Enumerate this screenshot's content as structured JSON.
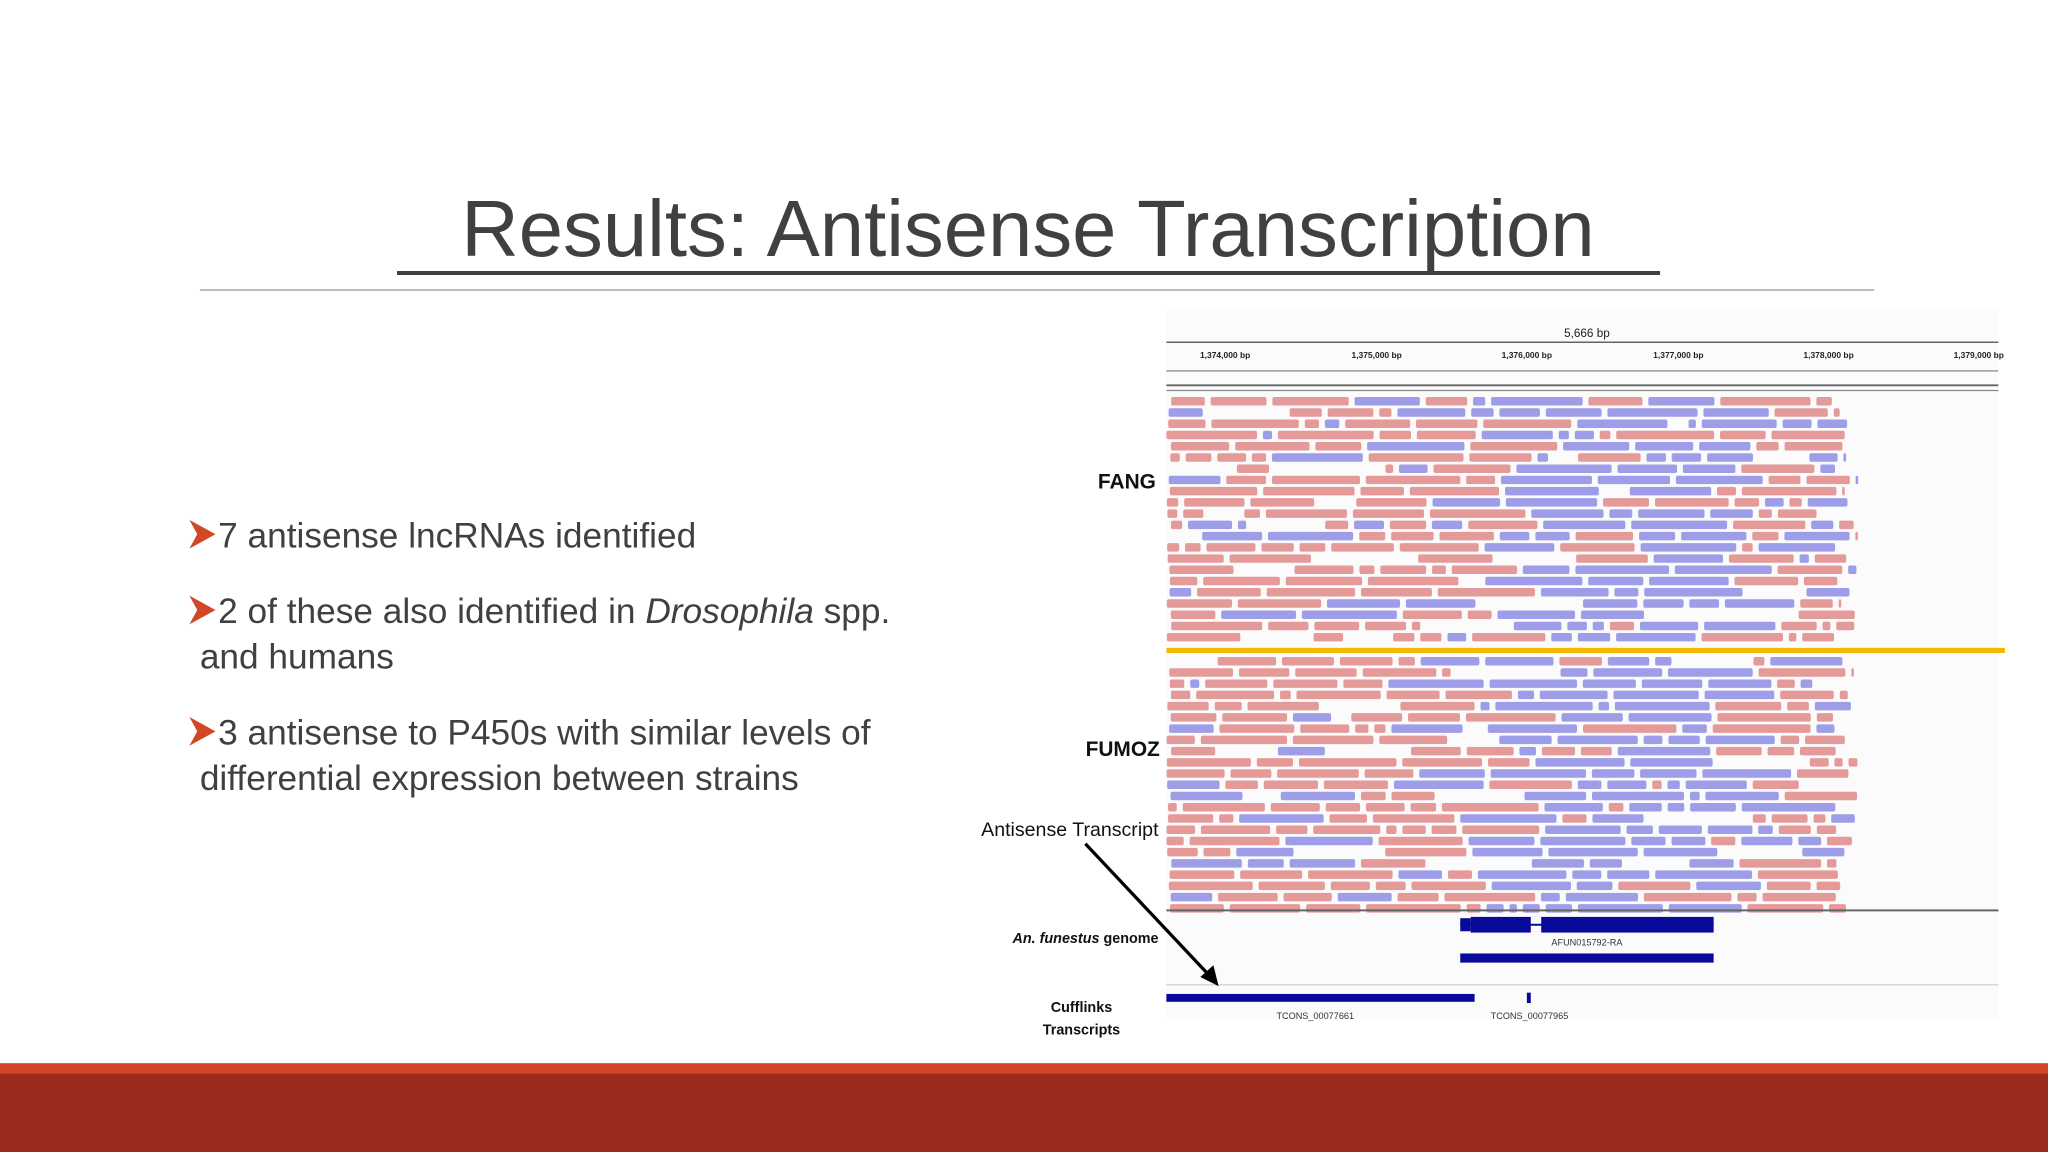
{
  "title": "Results: Antisense Transcription",
  "bullets": [
    {
      "lines": [
        [
          "7 antisense lncRNAs identified"
        ]
      ]
    },
    {
      "lines": [
        [
          "2 of these also identified in ",
          "Drosophila",
          " spp."
        ],
        [
          "and humans"
        ]
      ]
    },
    {
      "lines": [
        [
          "3 antisense to P450s with similar levels of"
        ],
        [
          "differential expression between strains"
        ]
      ]
    }
  ],
  "figure": {
    "ruler_span": "5,666 bp",
    "ruler_ticks": [
      "1,374,000 bp",
      "1,375,000 bp",
      "1,376,000 bp",
      "1,377,000 bp",
      "1,378,000 bp",
      "1,379,000 bp"
    ],
    "tracks": [
      "FANG",
      "FUMOZ"
    ],
    "callout": "Antisense Transcript",
    "genome_track": {
      "label_parts": [
        "An. funestus",
        " genome"
      ],
      "gene": "AFUN015792-RA"
    },
    "cufflinks": {
      "label_lines": [
        "Cufflinks",
        "Transcripts"
      ],
      "transcripts": [
        "TCONS_00077661",
        "TCONS_00077965"
      ]
    }
  }
}
